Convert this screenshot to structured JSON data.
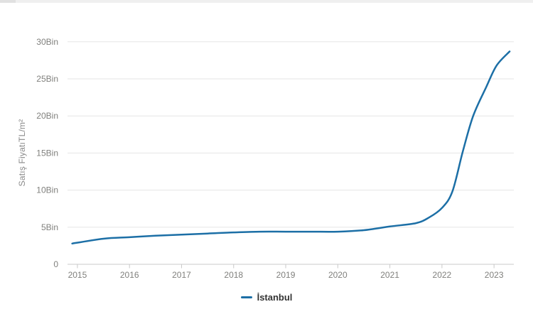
{
  "chart": {
    "colors": {
      "series_line": "#1c6fa6",
      "grid_line": "#e6e6e6",
      "axis_line": "#c9c9c9",
      "tick_label": "#80807d",
      "axis_title": "#8a8a8a",
      "legend_text": "#333333",
      "top_strip": "#efefef",
      "top_strip_accent": "#e1e1e1"
    }
  },
  "chart_data": {
    "type": "line",
    "title": "",
    "xlabel": "",
    "ylabel": "Satış FiyatıTL/m²",
    "x_tick_labels": [
      "2015",
      "2016",
      "2017",
      "2018",
      "2019",
      "2020",
      "2021",
      "2022",
      "2023"
    ],
    "x_tick_values": [
      2015,
      2016,
      2017,
      2018,
      2019,
      2020,
      2021,
      2022,
      2023
    ],
    "y_tick_labels": [
      "0",
      "5Bin",
      "10Bin",
      "15Bin",
      "20Bin",
      "25Bin",
      "30Bin"
    ],
    "y_tick_values": [
      0,
      5000,
      10000,
      15000,
      20000,
      25000,
      30000
    ],
    "xlim": [
      2014.81,
      2023.38
    ],
    "ylim": [
      0,
      30000
    ],
    "grid": true,
    "legend_position": "bottom-center",
    "series": [
      {
        "name": "İstanbul",
        "color": "#1c6fa6",
        "unit": "TL/m²",
        "x": [
          2014.9,
          2015.5,
          2016,
          2016.5,
          2017,
          2017.5,
          2018,
          2018.5,
          2019,
          2019.5,
          2020,
          2020.5,
          2021,
          2021.5,
          2021.75,
          2022,
          2022.2,
          2022.4,
          2022.6,
          2022.85,
          2023.05,
          2023.3
        ],
        "y": [
          2800,
          3450,
          3650,
          3850,
          4000,
          4150,
          4300,
          4400,
          4400,
          4400,
          4400,
          4600,
          5100,
          5550,
          6300,
          7600,
          9800,
          15200,
          20000,
          23900,
          26800,
          28700
        ]
      }
    ]
  }
}
